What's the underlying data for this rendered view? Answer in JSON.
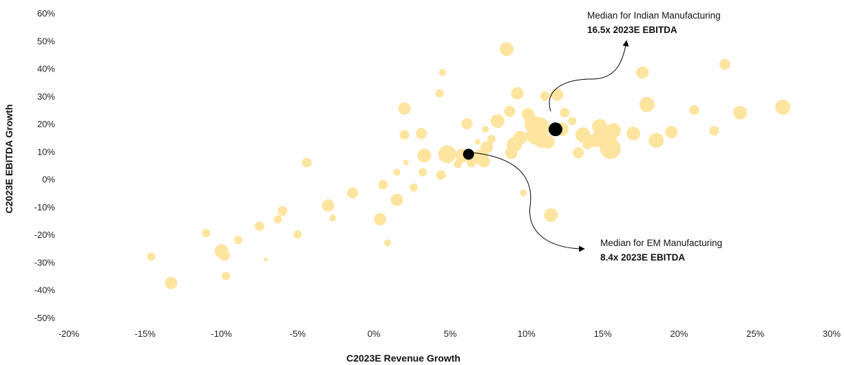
{
  "chart_data": {
    "type": "scatter",
    "title": "",
    "xlabel": "C2023E Revenue Growth",
    "ylabel": "C2023E EBITDA Growth",
    "xlim": [
      -20,
      30
    ],
    "ylim": [
      -50,
      60
    ],
    "x_ticks": [
      -20,
      -15,
      -10,
      -5,
      0,
      5,
      10,
      15,
      20,
      25,
      30
    ],
    "x_tick_labels": [
      "-20%",
      "-15%",
      "-10%",
      "-5%",
      "0%",
      "5%",
      "10%",
      "15%",
      "20%",
      "25%",
      "30%"
    ],
    "y_ticks": [
      60,
      50,
      40,
      30,
      20,
      10,
      0,
      -10,
      -20,
      -30,
      -40,
      -50
    ],
    "y_tick_labels": [
      "60%",
      "50%",
      "40%",
      "30%",
      "20%",
      "10%",
      "0%",
      "-10%",
      "-20%",
      "-30%",
      "-40%",
      "-50%"
    ],
    "bubble_color": "#FDE5A0",
    "median_color": "#000000",
    "companies": [
      {
        "x": -14.6,
        "y": -28,
        "size": 6
      },
      {
        "x": -13.3,
        "y": -37.5,
        "size": 9
      },
      {
        "x": -11.0,
        "y": -19.5,
        "size": 6
      },
      {
        "x": -10.0,
        "y": -26,
        "size": 10
      },
      {
        "x": -9.8,
        "y": -27.5,
        "size": 8
      },
      {
        "x": -9.7,
        "y": -35,
        "size": 6
      },
      {
        "x": -8.9,
        "y": -22,
        "size": 6
      },
      {
        "x": -7.5,
        "y": -17,
        "size": 7
      },
      {
        "x": -7.1,
        "y": -29,
        "size": 3
      },
      {
        "x": -6.3,
        "y": -14.5,
        "size": 6
      },
      {
        "x": -6.0,
        "y": -11.5,
        "size": 7
      },
      {
        "x": -5.0,
        "y": -20,
        "size": 6
      },
      {
        "x": -4.4,
        "y": 6,
        "size": 7
      },
      {
        "x": -3.0,
        "y": -9.5,
        "size": 9
      },
      {
        "x": -2.7,
        "y": -14,
        "size": 5
      },
      {
        "x": -1.4,
        "y": -5,
        "size": 8
      },
      {
        "x": 0.4,
        "y": -14.5,
        "size": 9
      },
      {
        "x": 0.6,
        "y": -2,
        "size": 7
      },
      {
        "x": 0.9,
        "y": -23,
        "size": 5
      },
      {
        "x": 1.5,
        "y": -7.5,
        "size": 9
      },
      {
        "x": 1.5,
        "y": 2.5,
        "size": 5
      },
      {
        "x": 2.0,
        "y": 25.5,
        "size": 9
      },
      {
        "x": 2.0,
        "y": 16,
        "size": 7
      },
      {
        "x": 2.1,
        "y": 6,
        "size": 4
      },
      {
        "x": 2.6,
        "y": -3,
        "size": 6
      },
      {
        "x": 3.1,
        "y": 16.5,
        "size": 8
      },
      {
        "x": 3.2,
        "y": 2.5,
        "size": 6
      },
      {
        "x": 3.3,
        "y": 8.5,
        "size": 10
      },
      {
        "x": 4.3,
        "y": 31,
        "size": 6
      },
      {
        "x": 4.5,
        "y": 38.5,
        "size": 5
      },
      {
        "x": 4.4,
        "y": 1.5,
        "size": 7
      },
      {
        "x": 4.8,
        "y": 9,
        "size": 13
      },
      {
        "x": 5.5,
        "y": 5.5,
        "size": 6
      },
      {
        "x": 5.8,
        "y": 8.5,
        "size": 10
      },
      {
        "x": 6.1,
        "y": 20,
        "size": 8
      },
      {
        "x": 6.4,
        "y": 6,
        "size": 7
      },
      {
        "x": 6.8,
        "y": 13.5,
        "size": 4
      },
      {
        "x": 7.0,
        "y": 8,
        "size": 11
      },
      {
        "x": 7.2,
        "y": 6.5,
        "size": 9
      },
      {
        "x": 7.3,
        "y": 18,
        "size": 5
      },
      {
        "x": 7.4,
        "y": 11.5,
        "size": 9
      },
      {
        "x": 7.7,
        "y": 14.5,
        "size": 6
      },
      {
        "x": 8.1,
        "y": 21,
        "size": 10
      },
      {
        "x": 8.7,
        "y": 47,
        "size": 10
      },
      {
        "x": 8.9,
        "y": 24.5,
        "size": 8
      },
      {
        "x": 9.0,
        "y": 9.5,
        "size": 9
      },
      {
        "x": 9.2,
        "y": 12.5,
        "size": 11
      },
      {
        "x": 9.4,
        "y": 31,
        "size": 9
      },
      {
        "x": 9.6,
        "y": 15,
        "size": 10
      },
      {
        "x": 9.8,
        "y": -5,
        "size": 5
      },
      {
        "x": 10.1,
        "y": 23.5,
        "size": 9
      },
      {
        "x": 10.4,
        "y": 20,
        "size": 12
      },
      {
        "x": 10.6,
        "y": 16,
        "size": 14
      },
      {
        "x": 10.8,
        "y": 18.5,
        "size": 16
      },
      {
        "x": 11.0,
        "y": 14,
        "size": 11
      },
      {
        "x": 11.2,
        "y": 30,
        "size": 7
      },
      {
        "x": 11.4,
        "y": 13.5,
        "size": 10
      },
      {
        "x": 11.6,
        "y": -13,
        "size": 10
      },
      {
        "x": 12.0,
        "y": 30.5,
        "size": 9
      },
      {
        "x": 12.3,
        "y": 18,
        "size": 10
      },
      {
        "x": 12.5,
        "y": 24,
        "size": 7
      },
      {
        "x": 13.0,
        "y": 21,
        "size": 6
      },
      {
        "x": 13.4,
        "y": 9.5,
        "size": 8
      },
      {
        "x": 13.7,
        "y": 16,
        "size": 11
      },
      {
        "x": 14.0,
        "y": 12.5,
        "size": 7
      },
      {
        "x": 14.5,
        "y": 14,
        "size": 10
      },
      {
        "x": 14.8,
        "y": 19,
        "size": 11
      },
      {
        "x": 15.0,
        "y": 16.5,
        "size": 13
      },
      {
        "x": 15.3,
        "y": 13.5,
        "size": 14
      },
      {
        "x": 15.5,
        "y": 11,
        "size": 15
      },
      {
        "x": 15.7,
        "y": 17.5,
        "size": 11
      },
      {
        "x": 17.0,
        "y": 16.5,
        "size": 10
      },
      {
        "x": 17.6,
        "y": 38.5,
        "size": 9
      },
      {
        "x": 17.9,
        "y": 27,
        "size": 11
      },
      {
        "x": 18.5,
        "y": 14,
        "size": 11
      },
      {
        "x": 19.5,
        "y": 17,
        "size": 9
      },
      {
        "x": 21.0,
        "y": 25,
        "size": 7
      },
      {
        "x": 22.3,
        "y": 17.5,
        "size": 7
      },
      {
        "x": 23.0,
        "y": 41.5,
        "size": 8
      },
      {
        "x": 24.0,
        "y": 24,
        "size": 10
      },
      {
        "x": 26.8,
        "y": 26,
        "size": 11
      }
    ],
    "medians": [
      {
        "name": "Median for Indian Manufacturing",
        "x": 11.9,
        "y": 18,
        "multiple": "16.5x 2023E EBITDA",
        "size": 10
      },
      {
        "name": "Median for EM Manufacturing",
        "x": 6.2,
        "y": 9,
        "multiple": "8.4x 2023E EBITDA",
        "size": 8
      }
    ]
  }
}
